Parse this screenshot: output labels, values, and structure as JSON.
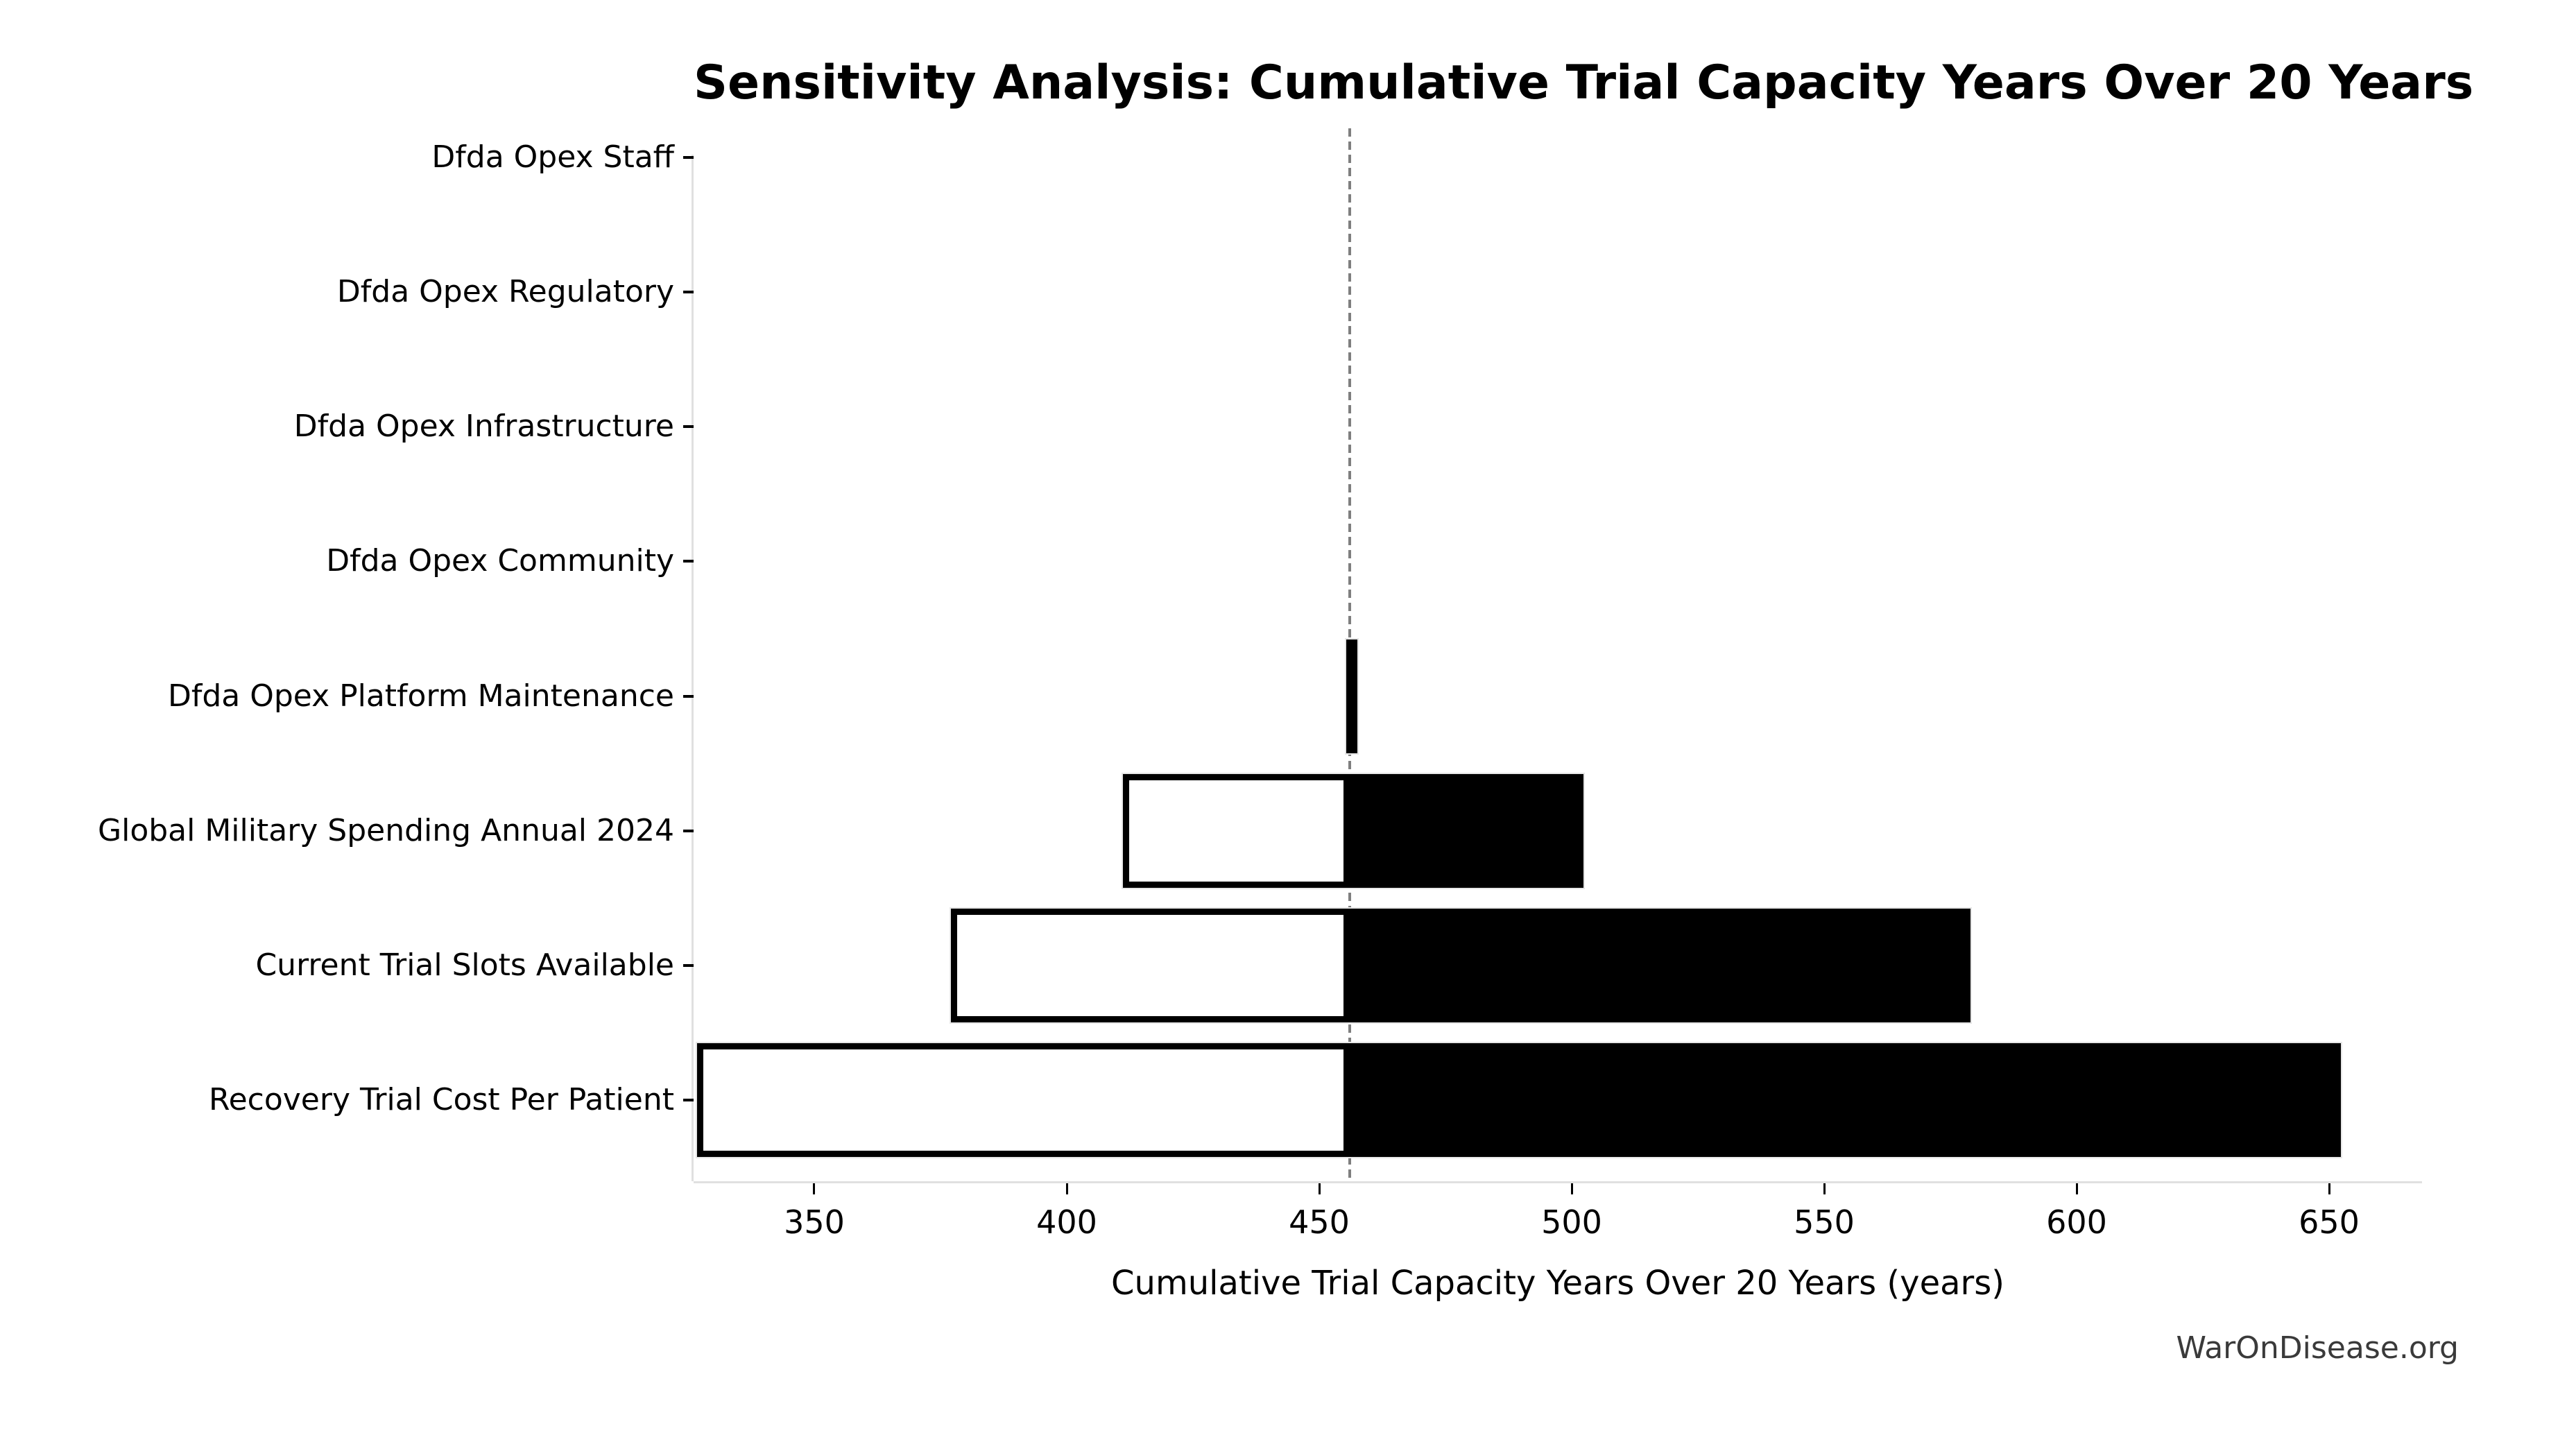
{
  "watermark": "WarOnDisease.org",
  "chart_data": {
    "type": "bar",
    "variant": "tornado-sensitivity",
    "orientation": "horizontal",
    "title": "Sensitivity Analysis: Cumulative Trial Capacity Years Over 20 Years",
    "xlabel": "Cumulative Trial Capacity Years Over 20 Years (years)",
    "ylabel": "",
    "baseline": 456.1,
    "xlim": [
      326.1,
      668.4
    ],
    "xticks": [
      350,
      400,
      450,
      500,
      550,
      600,
      650
    ],
    "grid": false,
    "legend": null,
    "rows": [
      {
        "label": "Dfda Opex Staff",
        "low": 456.1,
        "high": 456.1
      },
      {
        "label": "Dfda Opex Regulatory",
        "low": 456.1,
        "high": 456.1
      },
      {
        "label": "Dfda Opex Infrastructure",
        "low": 456.1,
        "high": 456.1
      },
      {
        "label": "Dfda Opex Community",
        "low": 456.1,
        "high": 456.1
      },
      {
        "label": "Dfda Opex Platform Maintenance",
        "low": 455.4,
        "high": 457.6
      },
      {
        "label": "Global Military Spending Annual 2024",
        "low": 411.1,
        "high": 502.3
      },
      {
        "label": "Current Trial Slots Available",
        "low": 377.0,
        "high": 579.0
      },
      {
        "label": "Recovery Trial Cost Per Patient",
        "low": 326.8,
        "high": 652.3
      }
    ],
    "colors": {
      "low_fill": "#ffffff",
      "high_fill": "#000000",
      "bar_edge": "#000000",
      "baseline_line": "#7f7f7f",
      "spine": "#e0e0e0",
      "text": "#000000",
      "watermark_text": "#3a3a3a"
    }
  }
}
